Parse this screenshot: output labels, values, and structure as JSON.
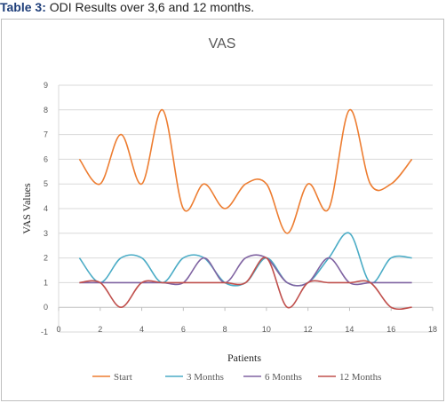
{
  "caption": {
    "lead": "Table 3:",
    "rest": " ODI Results over 3,6 and 12 months."
  },
  "chart_data": {
    "type": "line",
    "title": "VAS",
    "xlabel": "Patients",
    "ylabel": "VAS Values",
    "xlim": [
      0,
      18
    ],
    "ylim": [
      -1,
      9
    ],
    "xticks": [
      0,
      2,
      4,
      6,
      8,
      10,
      12,
      14,
      16,
      18
    ],
    "yticks": [
      -1,
      0,
      1,
      2,
      3,
      4,
      5,
      6,
      7,
      8,
      9
    ],
    "grid": "horizontal",
    "legend_position": "bottom",
    "x": [
      1,
      2,
      3,
      4,
      5,
      6,
      7,
      8,
      9,
      10,
      11,
      12,
      13,
      14,
      15,
      16,
      17
    ],
    "series": [
      {
        "name": "Start",
        "color": "#ED7D31",
        "values": [
          6,
          5,
          7,
          5,
          8,
          4,
          5,
          4,
          5,
          5,
          3,
          5,
          4,
          8,
          5,
          5,
          6
        ]
      },
      {
        "name": "3 Months",
        "color": "#4BACC6",
        "values": [
          2,
          1,
          2,
          2,
          1,
          2,
          2,
          1,
          1,
          2,
          1,
          1,
          2,
          3,
          1,
          2,
          2
        ]
      },
      {
        "name": "6 Months",
        "color": "#8064A2",
        "values": [
          1,
          1,
          1,
          1,
          1,
          1,
          2,
          1,
          2,
          2,
          1,
          1,
          2,
          1,
          1,
          1,
          1
        ]
      },
      {
        "name": "12 Months",
        "color": "#C0504D",
        "values": [
          1,
          1,
          0,
          1,
          1,
          1,
          1,
          1,
          1,
          2,
          0,
          1,
          1,
          1,
          1,
          0,
          0
        ]
      }
    ]
  }
}
